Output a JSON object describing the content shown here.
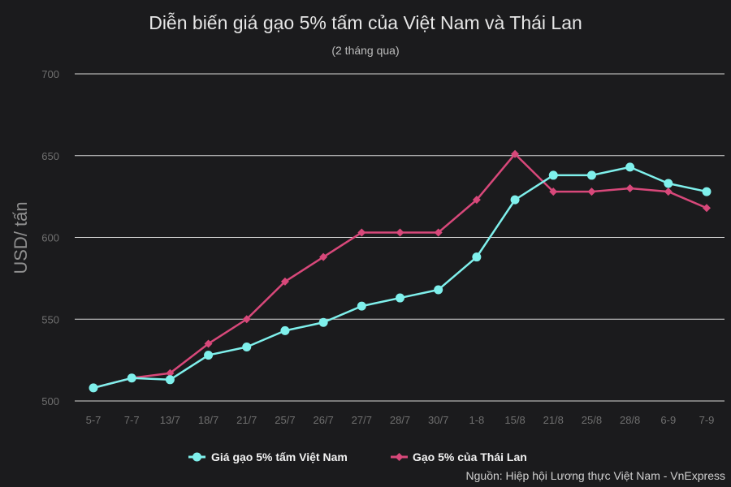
{
  "chart_data": {
    "type": "line",
    "title": "Diễn biến giá gạo 5% tấm của Việt Nam và Thái Lan",
    "subtitle": "(2 tháng qua)",
    "ylabel": "USD/ tấn",
    "xlabel": "",
    "ylim": [
      500,
      700
    ],
    "yticks": [
      "500",
      "550",
      "600",
      "650",
      "700"
    ],
    "grid": true,
    "legend_position": "bottom",
    "categories": [
      "5-7",
      "7-7",
      "13/7",
      "18/7",
      "21/7",
      "25/7",
      "26/7",
      "27/7",
      "28/7",
      "30/7",
      "1-8",
      "15/8",
      "21/8",
      "25/8",
      "28/8",
      "6-9",
      "7-9"
    ],
    "series": [
      {
        "name": "Giá gạo 5% tấm Việt Nam",
        "color": "#7ff0ec",
        "marker": "circle",
        "values": [
          508,
          514,
          513,
          528,
          533,
          543,
          548,
          558,
          563,
          568,
          588,
          623,
          638,
          638,
          643,
          633,
          628
        ]
      },
      {
        "name": "Gạo 5% của Thái Lan",
        "color": "#d8487a",
        "marker": "diamond",
        "values": [
          508,
          514,
          517,
          535,
          550,
          573,
          588,
          603,
          603,
          603,
          623,
          651,
          628,
          628,
          630,
          628,
          618
        ]
      }
    ],
    "source": "Nguồn: Hiệp hội Lương thực Việt Nam - VnExpress"
  }
}
